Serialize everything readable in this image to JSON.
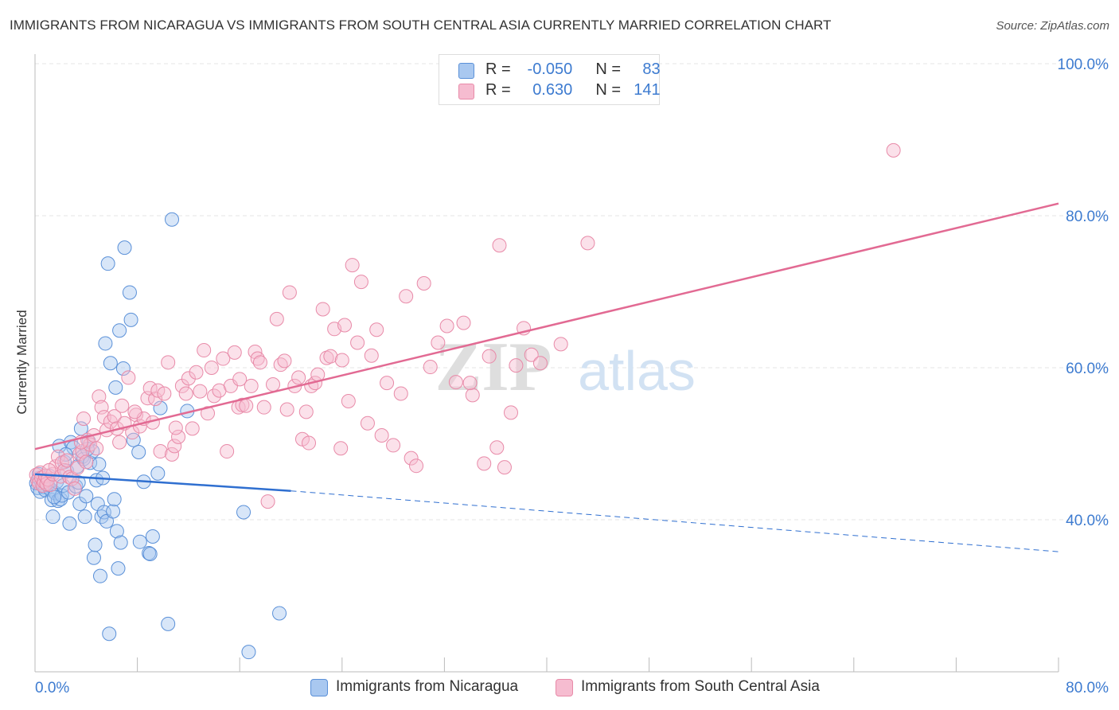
{
  "header": {
    "title": "IMMIGRANTS FROM NICARAGUA VS IMMIGRANTS FROM SOUTH CENTRAL ASIA CURRENTLY MARRIED CORRELATION CHART",
    "source": "Source: ZipAtlas.com"
  },
  "legend": {
    "r_label": "R =",
    "n_label": "N =",
    "nicaragua": {
      "r": "-0.050",
      "n": "83"
    },
    "south_central_asia": {
      "r": "0.630",
      "n": "141"
    }
  },
  "watermark": {
    "zip": "ZIP",
    "atlas": "atlas"
  },
  "chart_data": {
    "type": "scatter",
    "xlabel": "",
    "ylabel": "Currently Married",
    "xlim": [
      0,
      80
    ],
    "ylim": [
      20,
      100
    ],
    "x_tick_labels": [
      "0.0%",
      "80.0%"
    ],
    "y_tick_values": [
      40,
      60,
      80,
      100
    ],
    "y_tick_labels": [
      "40.0%",
      "60.0%",
      "80.0%",
      "100.0%"
    ],
    "grid": true,
    "legend_position": "top-center",
    "colors": {
      "nicaragua_fill": "#a9c8f0",
      "nicaragua_stroke": "#5a90d8",
      "nicaragua_line": "#2f6fd0",
      "asia_fill": "#f6bcd0",
      "asia_stroke": "#e88aa8",
      "asia_line": "#e26a93",
      "tick_label": "#3d7bd0"
    },
    "series": [
      {
        "name": "Immigrants from Nicaragua",
        "trend": {
          "x": [
            0,
            20
          ],
          "y": [
            46.0,
            43.8
          ],
          "dashed_to": [
            80,
            35.8
          ]
        },
        "points": [
          [
            0.1,
            44.8
          ],
          [
            0.2,
            44.2
          ],
          [
            0.3,
            45.5
          ],
          [
            0.4,
            43.7
          ],
          [
            0.5,
            44.9
          ],
          [
            0.6,
            45.2
          ],
          [
            0.7,
            44.3
          ],
          [
            0.8,
            43.9
          ],
          [
            0.9,
            45.1
          ],
          [
            1.0,
            44.6
          ],
          [
            1.1,
            45.8
          ],
          [
            1.2,
            44.0
          ],
          [
            1.3,
            42.6
          ],
          [
            1.4,
            40.4
          ],
          [
            1.6,
            43.5
          ],
          [
            1.7,
            45.0
          ],
          [
            1.8,
            42.5
          ],
          [
            1.9,
            49.7
          ],
          [
            2.0,
            42.7
          ],
          [
            2.1,
            43.2
          ],
          [
            2.2,
            44.5
          ],
          [
            2.3,
            47.6
          ],
          [
            2.5,
            46.4
          ],
          [
            2.6,
            43.6
          ],
          [
            2.7,
            39.5
          ],
          [
            2.8,
            50.2
          ],
          [
            3.0,
            49.5
          ],
          [
            3.2,
            44.4
          ],
          [
            3.3,
            47.0
          ],
          [
            3.5,
            42.1
          ],
          [
            3.6,
            52.0
          ],
          [
            3.7,
            48.3
          ],
          [
            3.8,
            48.0
          ],
          [
            3.9,
            40.4
          ],
          [
            4.0,
            43.1
          ],
          [
            4.2,
            50.3
          ],
          [
            4.3,
            47.5
          ],
          [
            4.5,
            49.0
          ],
          [
            4.6,
            35.0
          ],
          [
            4.7,
            36.7
          ],
          [
            4.8,
            45.2
          ],
          [
            4.9,
            42.1
          ],
          [
            5.0,
            47.3
          ],
          [
            5.1,
            32.6
          ],
          [
            5.2,
            40.4
          ],
          [
            5.3,
            45.5
          ],
          [
            5.4,
            41.0
          ],
          [
            5.5,
            63.2
          ],
          [
            5.6,
            39.8
          ],
          [
            5.7,
            73.7
          ],
          [
            5.8,
            25.0
          ],
          [
            5.9,
            60.6
          ],
          [
            6.1,
            41.1
          ],
          [
            6.2,
            42.7
          ],
          [
            6.3,
            57.4
          ],
          [
            6.4,
            38.5
          ],
          [
            6.5,
            33.6
          ],
          [
            6.6,
            64.9
          ],
          [
            6.9,
            59.9
          ],
          [
            7.0,
            75.8
          ],
          [
            7.4,
            69.9
          ],
          [
            7.5,
            66.3
          ],
          [
            7.7,
            50.5
          ],
          [
            8.1,
            48.9
          ],
          [
            8.2,
            37.1
          ],
          [
            8.5,
            45.0
          ],
          [
            8.9,
            35.6
          ],
          [
            9.2,
            37.8
          ],
          [
            9.6,
            46.1
          ],
          [
            9.8,
            54.7
          ],
          [
            10.4,
            26.3
          ],
          [
            10.7,
            79.5
          ],
          [
            11.9,
            54.3
          ],
          [
            16.3,
            41.0
          ],
          [
            16.7,
            22.6
          ],
          [
            19.1,
            27.7
          ],
          [
            0.3,
            46.0
          ],
          [
            1.5,
            43.0
          ],
          [
            2.4,
            48.6
          ],
          [
            3.4,
            44.9
          ],
          [
            4.1,
            49.3
          ],
          [
            6.7,
            37.0
          ],
          [
            9.0,
            35.5
          ]
        ]
      },
      {
        "name": "Immigrants from South Central Asia",
        "trend": {
          "x": [
            0,
            80
          ],
          "y": [
            49.3,
            81.6
          ]
        },
        "points": [
          [
            0.1,
            45.9
          ],
          [
            0.2,
            45.2
          ],
          [
            0.3,
            44.8
          ],
          [
            0.4,
            46.2
          ],
          [
            0.5,
            45.5
          ],
          [
            0.6,
            44.5
          ],
          [
            0.7,
            45.0
          ],
          [
            0.8,
            45.8
          ],
          [
            0.9,
            44.7
          ],
          [
            1.0,
            45.3
          ],
          [
            1.2,
            44.6
          ],
          [
            1.4,
            46.0
          ],
          [
            1.6,
            47.0
          ],
          [
            1.8,
            48.3
          ],
          [
            2.0,
            45.7
          ],
          [
            2.1,
            47.5
          ],
          [
            2.3,
            46.5
          ],
          [
            2.5,
            47.8
          ],
          [
            2.7,
            45.6
          ],
          [
            2.9,
            45.4
          ],
          [
            3.1,
            44.1
          ],
          [
            3.3,
            46.8
          ],
          [
            3.5,
            48.7
          ],
          [
            3.7,
            49.0
          ],
          [
            3.8,
            53.3
          ],
          [
            4.0,
            47.6
          ],
          [
            4.1,
            50.5
          ],
          [
            4.3,
            49.9
          ],
          [
            4.6,
            51.1
          ],
          [
            4.8,
            49.4
          ],
          [
            5.0,
            56.2
          ],
          [
            5.2,
            54.8
          ],
          [
            5.4,
            53.5
          ],
          [
            5.6,
            51.8
          ],
          [
            5.9,
            52.9
          ],
          [
            6.2,
            53.6
          ],
          [
            6.4,
            52.0
          ],
          [
            6.6,
            50.2
          ],
          [
            6.8,
            55.0
          ],
          [
            7.0,
            52.7
          ],
          [
            7.3,
            58.7
          ],
          [
            7.6,
            51.5
          ],
          [
            7.9,
            53.8
          ],
          [
            8.2,
            52.3
          ],
          [
            8.5,
            53.3
          ],
          [
            8.8,
            56.0
          ],
          [
            9.0,
            57.3
          ],
          [
            9.2,
            52.8
          ],
          [
            9.4,
            55.9
          ],
          [
            9.6,
            57.0
          ],
          [
            9.8,
            49.0
          ],
          [
            10.1,
            56.6
          ],
          [
            10.4,
            60.7
          ],
          [
            10.7,
            48.6
          ],
          [
            10.9,
            49.7
          ],
          [
            11.2,
            50.9
          ],
          [
            11.5,
            57.6
          ],
          [
            11.8,
            56.6
          ],
          [
            12.0,
            58.6
          ],
          [
            12.3,
            52.0
          ],
          [
            12.6,
            59.4
          ],
          [
            12.9,
            56.9
          ],
          [
            13.2,
            62.3
          ],
          [
            13.5,
            54.0
          ],
          [
            13.8,
            60.0
          ],
          [
            14.0,
            56.3
          ],
          [
            14.4,
            57.0
          ],
          [
            14.7,
            61.2
          ],
          [
            15.0,
            49.0
          ],
          [
            15.3,
            57.6
          ],
          [
            15.6,
            62.0
          ],
          [
            15.9,
            54.8
          ],
          [
            16.2,
            55.1
          ],
          [
            16.5,
            55.0
          ],
          [
            16.9,
            57.6
          ],
          [
            17.2,
            62.1
          ],
          [
            17.4,
            61.2
          ],
          [
            17.6,
            60.7
          ],
          [
            17.9,
            54.8
          ],
          [
            18.2,
            42.4
          ],
          [
            18.6,
            57.8
          ],
          [
            18.9,
            66.4
          ],
          [
            19.2,
            60.4
          ],
          [
            19.5,
            60.9
          ],
          [
            19.7,
            54.5
          ],
          [
            19.9,
            69.9
          ],
          [
            20.3,
            57.6
          ],
          [
            20.6,
            58.7
          ],
          [
            20.9,
            50.6
          ],
          [
            21.2,
            54.2
          ],
          [
            21.4,
            50.1
          ],
          [
            21.6,
            57.6
          ],
          [
            21.9,
            58.0
          ],
          [
            22.1,
            59.1
          ],
          [
            22.5,
            67.7
          ],
          [
            22.8,
            61.3
          ],
          [
            23.1,
            61.5
          ],
          [
            23.4,
            65.1
          ],
          [
            23.9,
            49.4
          ],
          [
            24.2,
            65.6
          ],
          [
            24.5,
            55.6
          ],
          [
            24.8,
            73.5
          ],
          [
            25.2,
            63.3
          ],
          [
            25.5,
            71.3
          ],
          [
            26.0,
            52.7
          ],
          [
            26.3,
            61.6
          ],
          [
            26.7,
            65.0
          ],
          [
            27.1,
            51.1
          ],
          [
            27.5,
            58.0
          ],
          [
            28.0,
            49.8
          ],
          [
            28.6,
            56.6
          ],
          [
            29.0,
            69.4
          ],
          [
            29.4,
            48.1
          ],
          [
            29.8,
            47.1
          ],
          [
            30.4,
            71.1
          ],
          [
            30.9,
            60.1
          ],
          [
            31.5,
            63.3
          ],
          [
            32.2,
            65.5
          ],
          [
            32.9,
            58.1
          ],
          [
            33.5,
            65.9
          ],
          [
            34.2,
            56.4
          ],
          [
            35.1,
            47.4
          ],
          [
            35.5,
            61.5
          ],
          [
            36.1,
            49.5
          ],
          [
            36.3,
            76.1
          ],
          [
            36.7,
            46.9
          ],
          [
            37.2,
            54.1
          ],
          [
            37.6,
            60.3
          ],
          [
            38.2,
            65.2
          ],
          [
            38.8,
            61.7
          ],
          [
            39.5,
            60.6
          ],
          [
            41.1,
            63.1
          ],
          [
            43.2,
            76.4
          ],
          [
            67.1,
            88.6
          ],
          [
            1.1,
            46.5
          ],
          [
            3.6,
            50.2
          ],
          [
            7.8,
            54.2
          ],
          [
            11.0,
            52.1
          ],
          [
            16.0,
            58.5
          ],
          [
            24.0,
            61.0
          ],
          [
            34.0,
            58.0
          ]
        ]
      }
    ]
  }
}
